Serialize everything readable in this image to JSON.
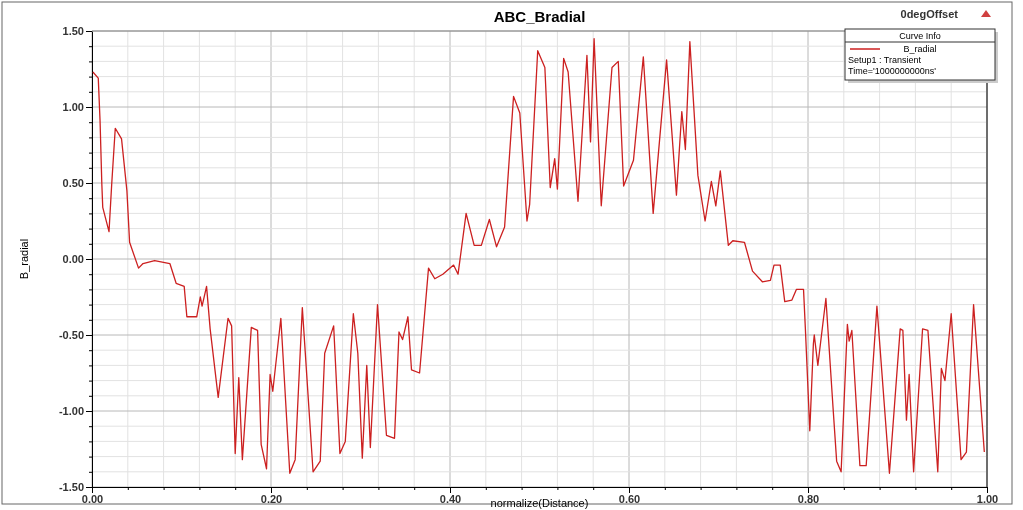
{
  "chart_data": {
    "type": "line",
    "title": "ABC_Bradial",
    "xlabel": "normalize(Distance)",
    "ylabel": "B_radial",
    "legend_title": "Curve Info",
    "legend": "top right",
    "grid": true,
    "marker": "none",
    "line_style": "solid",
    "annotations": [
      "0degOffset",
      "Setup1 : Transient",
      "Time='1000000000ns'"
    ],
    "xlim": [
      0,
      1
    ],
    "ylim": [
      -1.5,
      1.5
    ],
    "xticks": [
      {
        "value": 0,
        "label": "0.00"
      },
      {
        "value": 0.04,
        "label": null
      },
      {
        "value": 0.08,
        "label": null
      },
      {
        "value": 0.12,
        "label": null
      },
      {
        "value": 0.16,
        "label": null
      },
      {
        "value": 0.2,
        "label": "0.20"
      },
      {
        "value": 0.24,
        "label": null
      },
      {
        "value": 0.28,
        "label": null
      },
      {
        "value": 0.32,
        "label": null
      },
      {
        "value": 0.36,
        "label": null
      },
      {
        "value": 0.4,
        "label": "0.40"
      },
      {
        "value": 0.44,
        "label": null
      },
      {
        "value": 0.48,
        "label": null
      },
      {
        "value": 0.52,
        "label": null
      },
      {
        "value": 0.56,
        "label": null
      },
      {
        "value": 0.6,
        "label": "0.60"
      },
      {
        "value": 0.64,
        "label": null
      },
      {
        "value": 0.68,
        "label": null
      },
      {
        "value": 0.72,
        "label": null
      },
      {
        "value": 0.76,
        "label": null
      },
      {
        "value": 0.8,
        "label": "0.80"
      },
      {
        "value": 0.84,
        "label": null
      },
      {
        "value": 0.88,
        "label": null
      },
      {
        "value": 0.92,
        "label": null
      },
      {
        "value": 0.96,
        "label": null
      },
      {
        "value": 1,
        "label": "1.00"
      }
    ],
    "yticks": [
      {
        "value": -1.5,
        "label": "-1.50"
      },
      {
        "value": -1.4,
        "label": null
      },
      {
        "value": -1.3,
        "label": null
      },
      {
        "value": -1.2,
        "label": null
      },
      {
        "value": -1.1,
        "label": null
      },
      {
        "value": -1,
        "label": "-1.00"
      },
      {
        "value": -0.9,
        "label": null
      },
      {
        "value": -0.8,
        "label": null
      },
      {
        "value": -0.7,
        "label": null
      },
      {
        "value": -0.6,
        "label": null
      },
      {
        "value": -0.5,
        "label": "-0.50"
      },
      {
        "value": -0.4,
        "label": null
      },
      {
        "value": -0.3,
        "label": null
      },
      {
        "value": -0.2,
        "label": null
      },
      {
        "value": -0.1,
        "label": null
      },
      {
        "value": 0,
        "label": "0.00"
      },
      {
        "value": 0.1,
        "label": null
      },
      {
        "value": 0.2,
        "label": null
      },
      {
        "value": 0.3,
        "label": null
      },
      {
        "value": 0.4,
        "label": null
      },
      {
        "value": 0.5,
        "label": "0.50"
      },
      {
        "value": 0.6,
        "label": null
      },
      {
        "value": 0.7,
        "label": null
      },
      {
        "value": 0.8,
        "label": null
      },
      {
        "value": 0.9,
        "label": null
      },
      {
        "value": 1,
        "label": "1.00"
      },
      {
        "value": 1.1,
        "label": null
      },
      {
        "value": 1.2,
        "label": null
      },
      {
        "value": 1.3,
        "label": null
      },
      {
        "value": 1.4,
        "label": null
      },
      {
        "value": 1.5,
        "label": "1.50"
      }
    ],
    "series": [
      {
        "name": "B_radial",
        "color": "#cc2020",
        "x": [
          0.001,
          0.007,
          0.009,
          0.011,
          0.012,
          0.019,
          0.022,
          0.026,
          0.033,
          0.039,
          0.042,
          0.052,
          0.057,
          0.07,
          0.087,
          0.094,
          0.103,
          0.106,
          0.117,
          0.121,
          0.123,
          0.128,
          0.132,
          0.141,
          0.152,
          0.156,
          0.16,
          0.164,
          0.168,
          0.178,
          0.185,
          0.189,
          0.195,
          0.199,
          0.202,
          0.211,
          0.221,
          0.227,
          0.235,
          0.247,
          0.255,
          0.26,
          0.27,
          0.277,
          0.283,
          0.292,
          0.297,
          0.302,
          0.307,
          0.311,
          0.319,
          0.329,
          0.338,
          0.343,
          0.347,
          0.353,
          0.357,
          0.366,
          0.376,
          0.383,
          0.392,
          0.404,
          0.409,
          0.418,
          0.427,
          0.435,
          0.444,
          0.452,
          0.461,
          0.471,
          0.478,
          0.486,
          0.489,
          0.498,
          0.506,
          0.512,
          0.517,
          0.52,
          0.527,
          0.532,
          0.543,
          0.553,
          0.557,
          0.561,
          0.569,
          0.581,
          0.588,
          0.594,
          0.605,
          0.616,
          0.627,
          0.642,
          0.653,
          0.659,
          0.663,
          0.668,
          0.677,
          0.685,
          0.692,
          0.697,
          0.702,
          0.711,
          0.716,
          0.729,
          0.738,
          0.749,
          0.758,
          0.762,
          0.769,
          0.774,
          0.782,
          0.787,
          0.795,
          0.797,
          0.802,
          0.806,
          0.807,
          0.811,
          0.82,
          0.828,
          0.832,
          0.837,
          0.844,
          0.846,
          0.849,
          0.858,
          0.865,
          0.877,
          0.891,
          0.903,
          0.906,
          0.91,
          0.913,
          0.918,
          0.928,
          0.934,
          0.945,
          0.949,
          0.953,
          0.96,
          0.971,
          0.977,
          0.985,
          0.997
        ],
        "values": [
          1.23,
          1.19,
          0.91,
          0.49,
          0.34,
          0.18,
          0.49,
          0.86,
          0.79,
          0.45,
          0.11,
          -0.06,
          -0.03,
          -0.01,
          -0.03,
          -0.16,
          -0.18,
          -0.38,
          -0.38,
          -0.25,
          -0.31,
          -0.18,
          -0.46,
          -0.91,
          -0.39,
          -0.44,
          -1.28,
          -0.78,
          -1.32,
          -0.45,
          -0.47,
          -1.22,
          -1.38,
          -0.76,
          -0.87,
          -0.39,
          -1.41,
          -1.32,
          -0.32,
          -1.4,
          -1.33,
          -0.62,
          -0.44,
          -1.28,
          -1.2,
          -0.36,
          -0.62,
          -1.31,
          -0.7,
          -1.24,
          -0.3,
          -1.16,
          -1.18,
          -0.48,
          -0.53,
          -0.38,
          -0.73,
          -0.75,
          -0.06,
          -0.13,
          -0.1,
          -0.04,
          -0.1,
          0.3,
          0.09,
          0.09,
          0.26,
          0.08,
          0.21,
          1.07,
          0.96,
          0.25,
          0.36,
          1.37,
          1.26,
          0.47,
          0.66,
          0.46,
          1.32,
          1.23,
          0.38,
          1.34,
          0.77,
          1.45,
          0.35,
          1.26,
          1.3,
          0.48,
          0.65,
          1.33,
          0.3,
          1.31,
          0.42,
          0.97,
          0.72,
          1.43,
          0.55,
          0.25,
          0.51,
          0.35,
          0.58,
          0.09,
          0.12,
          0.11,
          -0.08,
          -0.15,
          -0.14,
          -0.04,
          -0.04,
          -0.28,
          -0.27,
          -0.2,
          -0.2,
          -0.45,
          -1.13,
          -0.56,
          -0.5,
          -0.7,
          -0.26,
          -0.98,
          -1.33,
          -1.4,
          -0.43,
          -0.54,
          -0.47,
          -1.36,
          -1.36,
          -0.31,
          -1.41,
          -0.46,
          -0.47,
          -1.06,
          -0.76,
          -1.4,
          -0.46,
          -0.47,
          -1.4,
          -0.72,
          -0.8,
          -0.36,
          -1.32,
          -1.27,
          -0.3,
          -1.27
        ]
      }
    ]
  }
}
